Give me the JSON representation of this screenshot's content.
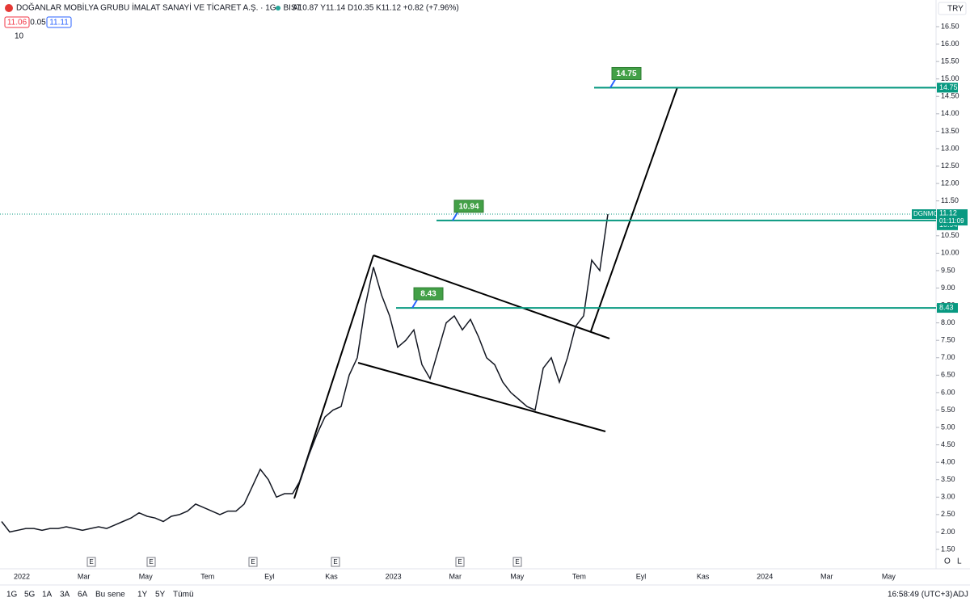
{
  "header": {
    "title": "DOĞANLAR MOBİLYA GRUBU İMALAT SANAYİ VE TİCARET A.Ş. · 1G · BIST",
    "ohlc": "A10.87 Y11.14 D10.35 K11.12 +0.82 (+7.96%)",
    "bid": "11.06",
    "spread": "0.05",
    "ask": "11.11",
    "volume_length": "10",
    "currency": "TRY"
  },
  "chart_data": {
    "type": "line",
    "symbol": "DGNMO",
    "color": "#131722",
    "values": [
      2.3,
      2.0,
      2.05,
      2.1,
      2.1,
      2.05,
      2.1,
      2.1,
      2.15,
      2.1,
      2.05,
      2.1,
      2.15,
      2.1,
      2.2,
      2.3,
      2.4,
      2.55,
      2.45,
      2.4,
      2.3,
      2.45,
      2.5,
      2.6,
      2.8,
      2.7,
      2.6,
      2.5,
      2.6,
      2.6,
      2.8,
      3.3,
      3.8,
      3.5,
      3.0,
      3.1,
      3.1,
      3.5,
      4.2,
      4.8,
      5.3,
      5.5,
      5.6,
      6.5,
      7.0,
      8.5,
      9.6,
      8.8,
      8.2,
      7.3,
      7.5,
      7.8,
      6.8,
      6.4,
      7.2,
      8.0,
      8.2,
      7.8,
      8.1,
      7.6,
      7.0,
      6.8,
      6.3,
      6.0,
      5.8,
      5.6,
      5.5,
      6.7,
      7.0,
      6.3,
      7.0,
      7.9,
      8.2,
      9.8,
      9.5,
      11.12
    ],
    "last": 11.12,
    "countdown": "01:11:09",
    "levels": [
      14.75,
      10.94,
      8.43
    ],
    "ylim": [
      1.5,
      16.5
    ],
    "yticks": [
      {
        "value": 1.5,
        "label": "1.50"
      },
      {
        "value": 2,
        "label": "2.00"
      },
      {
        "value": 2.5,
        "label": "2.50"
      },
      {
        "value": 3,
        "label": "3.00"
      },
      {
        "value": 3.5,
        "label": "3.50"
      },
      {
        "value": 4,
        "label": "4.00"
      },
      {
        "value": 4.5,
        "label": "4.50"
      },
      {
        "value": 5,
        "label": "5.00"
      },
      {
        "value": 5.5,
        "label": "5.50"
      },
      {
        "value": 6,
        "label": "6.00"
      },
      {
        "value": 6.5,
        "label": "6.50"
      },
      {
        "value": 7,
        "label": "7.00"
      },
      {
        "value": 7.5,
        "label": "7.50"
      },
      {
        "value": 8,
        "label": "8.00"
      },
      {
        "value": 8.5,
        "label": "8.50"
      },
      {
        "value": 9,
        "label": "9.00"
      },
      {
        "value": 9.5,
        "label": "9.50"
      },
      {
        "value": 10,
        "label": "10.00"
      },
      {
        "value": 10.5,
        "label": "10.50"
      },
      {
        "value": 11,
        "label": "11.00"
      },
      {
        "value": 11.5,
        "label": "11.50"
      },
      {
        "value": 12,
        "label": "12.00"
      },
      {
        "value": 12.5,
        "label": "12.50"
      },
      {
        "value": 13,
        "label": "13.00"
      },
      {
        "value": 13.5,
        "label": "13.50"
      },
      {
        "value": 14,
        "label": "14.00"
      },
      {
        "value": 14.5,
        "label": "14.50"
      },
      {
        "value": 15,
        "label": "15.00"
      },
      {
        "value": 15.5,
        "label": "15.50"
      },
      {
        "value": 16,
        "label": "16.00"
      },
      {
        "value": 16.5,
        "label": "16.50"
      }
    ],
    "time_labels": [
      "2022",
      "Mar",
      "May",
      "Tem",
      "Eyl",
      "Kas",
      "2023",
      "Mar",
      "May",
      "Tem",
      "Eyl",
      "Kas",
      "2024",
      "Mar",
      "May"
    ],
    "events": [
      "E",
      "E",
      "E",
      "E",
      "E",
      "E"
    ]
  },
  "footer": {
    "ranges": [
      "1G",
      "5G",
      "1A",
      "3A",
      "6A",
      "Bu sene",
      "1Y",
      "5Y",
      "Tümü"
    ],
    "clock": "16:58:49 (UTC+3)",
    "adj": "ADJ",
    "scale_o": "O",
    "scale_l": "L"
  }
}
